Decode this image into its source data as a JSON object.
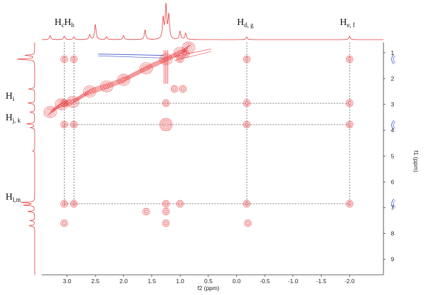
{
  "chart_data": {
    "type": "contour",
    "xlabel": "f2 (ppm)",
    "ylabel": "f1 (ppm)",
    "xlim": [
      3.45,
      -2.6
    ],
    "ylim": [
      0.6,
      9.6
    ],
    "xticks": [
      3.0,
      2.5,
      2.0,
      1.5,
      1.0,
      0.5,
      0.0,
      -0.5,
      -1.0,
      -1.5,
      -2.0
    ],
    "xtick_labels": [
      "3.0",
      "2.5",
      "2.0",
      "1.5",
      "1.0",
      "0.5",
      "0.0",
      "-0.5",
      "-1.0",
      "-1.5",
      "-2.0"
    ],
    "yticks": [
      1,
      2,
      3,
      4,
      5,
      6,
      7,
      8,
      9
    ],
    "ytick_labels": [
      "1",
      "2",
      "3",
      "4",
      "5",
      "6",
      "7",
      "8",
      "9"
    ],
    "peak_labels_top": [
      {
        "main": "H",
        "sub": "c",
        "x": 3.05
      },
      {
        "main": "H",
        "sub": "h",
        "x": 2.88
      },
      {
        "main": "H",
        "sub": "d, g",
        "x": -0.18
      },
      {
        "main": "H",
        "sub": "e, f",
        "x": -2.0
      }
    ],
    "peak_labels_left": [
      {
        "main": "H",
        "sub": "i",
        "y": 2.95
      },
      {
        "main": "H",
        "sub": "j, k",
        "y": 3.78
      },
      {
        "main": "H",
        "sub": "l,m",
        "y": 6.85
      }
    ],
    "guide_lines": {
      "vertical": [
        3.05,
        2.88,
        -0.18,
        -2.0
      ],
      "horizontal": [
        2.95,
        3.78,
        6.85
      ]
    },
    "diagonal": [
      [
        3.3,
        3.3
      ],
      [
        3.1,
        3.0
      ],
      [
        2.9,
        2.9
      ],
      [
        2.6,
        2.5
      ],
      [
        2.3,
        2.3
      ],
      [
        2.0,
        2.05
      ],
      [
        1.6,
        1.6
      ],
      [
        1.25,
        1.25
      ],
      [
        1.0,
        1.0
      ],
      [
        0.85,
        0.8
      ]
    ],
    "cross_peaks": [
      {
        "x": 3.05,
        "y": 1.25
      },
      {
        "x": 2.88,
        "y": 1.25
      },
      {
        "x": -0.18,
        "y": 1.25
      },
      {
        "x": -2.0,
        "y": 1.25
      },
      {
        "x": 1.25,
        "y": 2.95
      },
      {
        "x": 3.05,
        "y": 2.95
      },
      {
        "x": -0.18,
        "y": 2.95
      },
      {
        "x": -2.0,
        "y": 2.95
      },
      {
        "x": 3.05,
        "y": 3.78
      },
      {
        "x": 2.88,
        "y": 3.78
      },
      {
        "x": 1.25,
        "y": 3.78
      },
      {
        "x": -0.18,
        "y": 3.78
      },
      {
        "x": -2.0,
        "y": 3.78
      },
      {
        "x": 3.05,
        "y": 6.85
      },
      {
        "x": 2.88,
        "y": 6.85
      },
      {
        "x": 1.25,
        "y": 6.85
      },
      {
        "x": 1.0,
        "y": 6.85
      },
      {
        "x": -0.18,
        "y": 6.85
      },
      {
        "x": -2.0,
        "y": 6.85
      },
      {
        "x": 1.6,
        "y": 7.15
      },
      {
        "x": 1.25,
        "y": 7.15
      },
      {
        "x": 3.05,
        "y": 7.6
      },
      {
        "x": 1.25,
        "y": 7.6
      },
      {
        "x": -0.2,
        "y": 7.6
      },
      {
        "x": 1.0,
        "y": 1.25
      },
      {
        "x": 0.9,
        "y": 1.05
      },
      {
        "x": 1.1,
        "y": 2.4
      },
      {
        "x": 0.95,
        "y": 2.4
      }
    ],
    "negative_peaks": [
      {
        "x": -2.75,
        "y": 1.25
      },
      {
        "x": -2.75,
        "y": 3.8
      },
      {
        "x": -2.75,
        "y": 6.85
      }
    ],
    "colors": {
      "positive": "#e8363a",
      "negative": "#3a4fd0",
      "projection": "#e23c3c",
      "guide": "#333333",
      "axis": "#333333"
    }
  }
}
